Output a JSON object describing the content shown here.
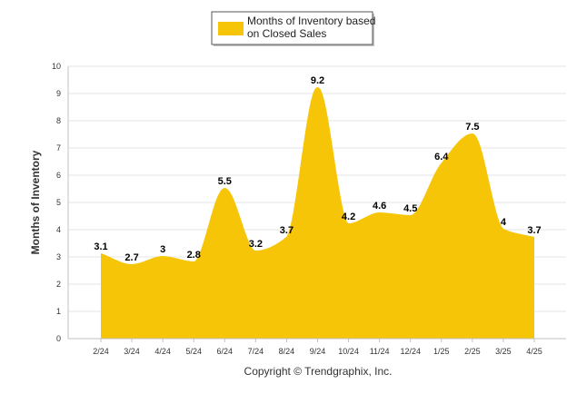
{
  "chart_data": {
    "type": "area",
    "categories": [
      "2/24",
      "3/24",
      "4/24",
      "5/24",
      "6/24",
      "7/24",
      "8/24",
      "9/24",
      "10/24",
      "11/24",
      "12/24",
      "1/25",
      "2/25",
      "3/25",
      "4/25"
    ],
    "series": [
      {
        "name": "Months of Inventory based on Closed Sales",
        "values": [
          3.1,
          2.7,
          3,
          2.8,
          5.5,
          3.2,
          3.7,
          9.2,
          4.2,
          4.6,
          4.5,
          6.4,
          7.5,
          4,
          3.7
        ],
        "labels": [
          "3.1",
          "2.7",
          "3",
          "2.8",
          "5.5",
          "3.2",
          "3.7",
          "9.2",
          "4.2",
          "4.6",
          "4.5",
          "6.4",
          "7.5",
          "4",
          "3.7"
        ]
      }
    ],
    "legend_lines": [
      "Months of Inventory based",
      "on Closed Sales"
    ],
    "ylabel": "Months of Inventory",
    "xlabel": "",
    "ylim": [
      0,
      10
    ],
    "yticks": [
      "0",
      "1",
      "2",
      "3",
      "4",
      "5",
      "6",
      "7",
      "8",
      "9",
      "10"
    ],
    "grid": true,
    "legend_position": "top-center",
    "colors": {
      "fill": "#F7C508",
      "grid": "#E6E6E6",
      "axis": "#C0C0C0"
    },
    "credit": "Copyright © Trendgraphix, Inc."
  }
}
